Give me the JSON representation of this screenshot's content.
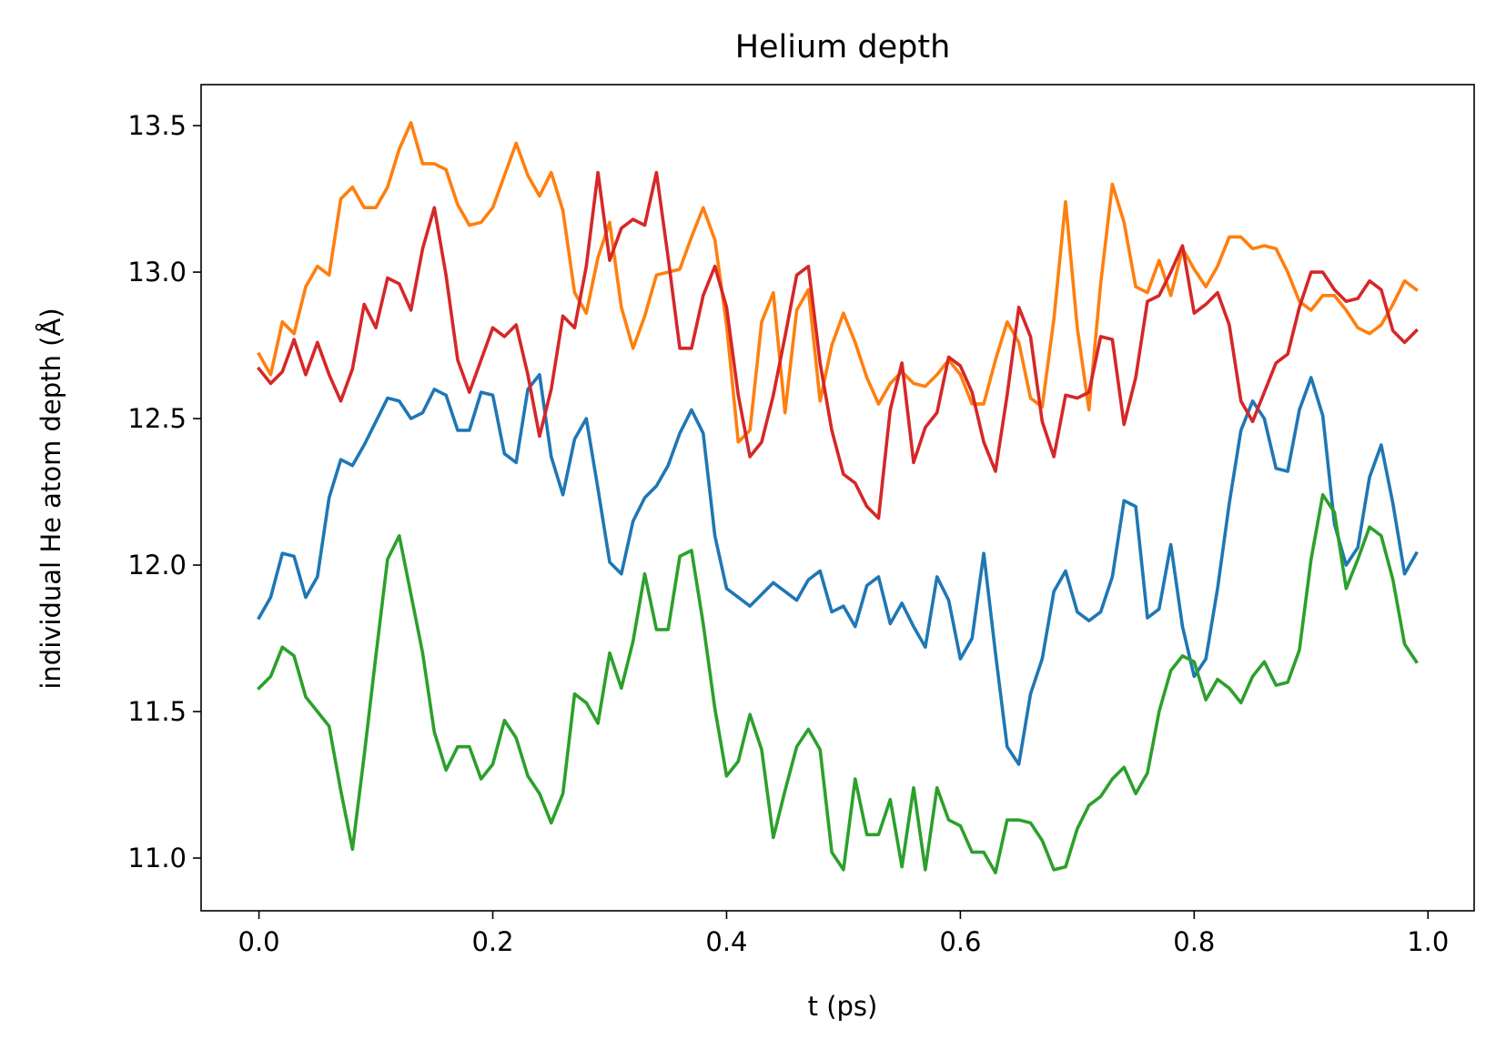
{
  "chart_data": {
    "type": "line",
    "title": "Helium depth",
    "xlabel": "t (ps)",
    "ylabel": "individual He atom depth (Å)",
    "xlim": [
      -0.0495,
      1.0395
    ],
    "ylim": [
      10.82,
      13.64
    ],
    "xticks": [
      0.0,
      0.2,
      0.4,
      0.6,
      0.8,
      1.0
    ],
    "xtick_labels": [
      "0.0",
      "0.2",
      "0.4",
      "0.6",
      "0.8",
      "1.0"
    ],
    "yticks": [
      11.0,
      11.5,
      12.0,
      12.5,
      13.0,
      13.5
    ],
    "ytick_labels": [
      "11.0",
      "11.5",
      "12.0",
      "12.5",
      "13.0",
      "13.5"
    ],
    "grid": false,
    "x": [
      0.0,
      0.01,
      0.02,
      0.03,
      0.04,
      0.05,
      0.06,
      0.07,
      0.08,
      0.09,
      0.1,
      0.11,
      0.12,
      0.13,
      0.14,
      0.15,
      0.16,
      0.17,
      0.18,
      0.19,
      0.2,
      0.21,
      0.22,
      0.23,
      0.24,
      0.25,
      0.26,
      0.27,
      0.28,
      0.29,
      0.3,
      0.31,
      0.32,
      0.33,
      0.34,
      0.35,
      0.36,
      0.37,
      0.38,
      0.39,
      0.4,
      0.41,
      0.42,
      0.43,
      0.44,
      0.45,
      0.46,
      0.47,
      0.48,
      0.49,
      0.5,
      0.51,
      0.52,
      0.53,
      0.54,
      0.55,
      0.56,
      0.57,
      0.58,
      0.59,
      0.6,
      0.61,
      0.62,
      0.63,
      0.64,
      0.65,
      0.66,
      0.67,
      0.68,
      0.69,
      0.7,
      0.71,
      0.72,
      0.73,
      0.74,
      0.75,
      0.76,
      0.77,
      0.78,
      0.79,
      0.8,
      0.81,
      0.82,
      0.83,
      0.84,
      0.85,
      0.86,
      0.87,
      0.88,
      0.89,
      0.9,
      0.91,
      0.92,
      0.93,
      0.94,
      0.95,
      0.96,
      0.97,
      0.98,
      0.99
    ],
    "series": [
      {
        "color": "#1f77b4",
        "values": [
          11.82,
          11.89,
          12.04,
          12.03,
          11.89,
          11.96,
          12.23,
          12.36,
          12.34,
          12.41,
          12.49,
          12.57,
          12.56,
          12.5,
          12.52,
          12.6,
          12.58,
          12.46,
          12.46,
          12.59,
          12.58,
          12.38,
          12.35,
          12.6,
          12.65,
          12.37,
          12.24,
          12.43,
          12.5,
          12.26,
          12.01,
          11.97,
          12.15,
          12.23,
          12.27,
          12.34,
          12.45,
          12.53,
          12.45,
          12.1,
          11.92,
          11.89,
          11.86,
          11.9,
          11.94,
          11.91,
          11.88,
          11.95,
          11.98,
          11.84,
          11.86,
          11.79,
          11.93,
          11.96,
          11.8,
          11.87,
          11.79,
          11.72,
          11.96,
          11.88,
          11.68,
          11.75,
          12.04,
          11.7,
          11.38,
          11.32,
          11.56,
          11.68,
          11.91,
          11.98,
          11.84,
          11.81,
          11.84,
          11.96,
          12.22,
          12.2,
          11.82,
          11.85,
          12.07,
          11.79,
          11.62,
          11.68,
          11.92,
          12.21,
          12.46,
          12.56,
          12.5,
          12.33,
          12.32,
          12.53,
          12.64,
          12.51,
          12.14,
          12.0,
          12.06,
          12.3,
          12.41,
          12.21,
          11.97,
          12.04
        ]
      },
      {
        "color": "#ff7f0e",
        "values": [
          12.72,
          12.65,
          12.83,
          12.79,
          12.95,
          13.02,
          12.99,
          13.25,
          13.29,
          13.22,
          13.22,
          13.29,
          13.42,
          13.51,
          13.37,
          13.37,
          13.35,
          13.23,
          13.16,
          13.17,
          13.22,
          13.33,
          13.44,
          13.33,
          13.26,
          13.34,
          13.21,
          12.93,
          12.86,
          13.05,
          13.17,
          12.88,
          12.74,
          12.85,
          12.99,
          13.0,
          13.01,
          13.12,
          13.22,
          13.11,
          12.82,
          12.42,
          12.46,
          12.83,
          12.93,
          12.52,
          12.87,
          12.94,
          12.56,
          12.75,
          12.86,
          12.76,
          12.64,
          12.55,
          12.62,
          12.66,
          12.62,
          12.61,
          12.65,
          12.7,
          12.65,
          12.55,
          12.55,
          12.7,
          12.83,
          12.76,
          12.57,
          12.54,
          12.84,
          13.24,
          12.81,
          12.53,
          12.96,
          13.3,
          13.17,
          12.95,
          12.93,
          13.04,
          12.92,
          13.08,
          13.01,
          12.95,
          13.02,
          13.12,
          13.12,
          13.08,
          13.09,
          13.08,
          13.0,
          12.9,
          12.87,
          12.92,
          12.92,
          12.87,
          12.81,
          12.79,
          12.82,
          12.89,
          12.97,
          12.94
        ]
      },
      {
        "color": "#2ca02c",
        "values": [
          11.58,
          11.62,
          11.72,
          11.69,
          11.55,
          11.5,
          11.45,
          11.23,
          11.03,
          11.35,
          11.69,
          12.02,
          12.1,
          11.9,
          11.7,
          11.43,
          11.3,
          11.38,
          11.38,
          11.27,
          11.32,
          11.47,
          11.41,
          11.28,
          11.22,
          11.12,
          11.22,
          11.56,
          11.53,
          11.46,
          11.7,
          11.58,
          11.74,
          11.97,
          11.78,
          11.78,
          12.03,
          12.05,
          11.8,
          11.51,
          11.28,
          11.33,
          11.49,
          11.37,
          11.07,
          11.23,
          11.38,
          11.44,
          11.37,
          11.02,
          10.96,
          11.27,
          11.08,
          11.08,
          11.2,
          10.97,
          11.24,
          10.96,
          11.24,
          11.13,
          11.11,
          11.02,
          11.02,
          10.95,
          11.13,
          11.13,
          11.12,
          11.06,
          10.96,
          10.97,
          11.1,
          11.18,
          11.21,
          11.27,
          11.31,
          11.22,
          11.29,
          11.5,
          11.64,
          11.69,
          11.67,
          11.54,
          11.61,
          11.58,
          11.53,
          11.62,
          11.67,
          11.59,
          11.6,
          11.71,
          12.02,
          12.24,
          12.18,
          11.92,
          12.02,
          12.13,
          12.1,
          11.95,
          11.73,
          11.67
        ]
      },
      {
        "color": "#d62728",
        "values": [
          12.67,
          12.62,
          12.66,
          12.77,
          12.65,
          12.76,
          12.65,
          12.56,
          12.67,
          12.89,
          12.81,
          12.98,
          12.96,
          12.87,
          13.08,
          13.22,
          12.99,
          12.7,
          12.59,
          12.7,
          12.81,
          12.78,
          12.82,
          12.65,
          12.44,
          12.6,
          12.85,
          12.81,
          13.02,
          13.34,
          13.04,
          13.15,
          13.18,
          13.16,
          13.34,
          13.05,
          12.74,
          12.74,
          12.92,
          13.02,
          12.88,
          12.58,
          12.37,
          12.42,
          12.58,
          12.78,
          12.99,
          13.02,
          12.69,
          12.46,
          12.31,
          12.28,
          12.2,
          12.16,
          12.53,
          12.69,
          12.35,
          12.47,
          12.52,
          12.71,
          12.68,
          12.59,
          12.42,
          12.32,
          12.58,
          12.88,
          12.78,
          12.49,
          12.37,
          12.58,
          12.57,
          12.59,
          12.78,
          12.77,
          12.48,
          12.64,
          12.9,
          12.92,
          13.0,
          13.09,
          12.86,
          12.89,
          12.93,
          12.82,
          12.56,
          12.49,
          12.59,
          12.69,
          12.72,
          12.88,
          13.0,
          13.0,
          12.94,
          12.9,
          12.91,
          12.97,
          12.94,
          12.8,
          12.76,
          12.8
        ]
      }
    ]
  }
}
